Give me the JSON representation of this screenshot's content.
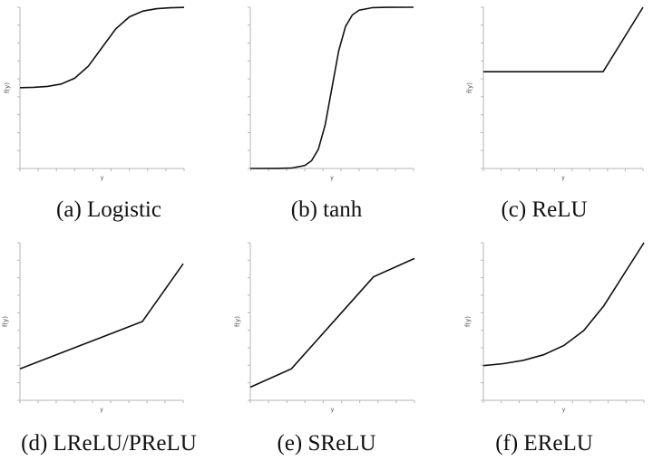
{
  "chart_data": [
    {
      "type": "line",
      "caption": "(a) Logistic",
      "xlabel": "y",
      "ylabel": "f(y)",
      "xlim": [
        -6,
        6
      ],
      "ylim": [
        -1,
        1
      ],
      "x": [
        -6,
        -5,
        -4,
        -3,
        -2,
        -1,
        0,
        1,
        2,
        3,
        4,
        5,
        6
      ],
      "series": [
        {
          "values": [
            0.002,
            0.007,
            0.018,
            0.047,
            0.119,
            0.269,
            0.5,
            0.731,
            0.881,
            0.953,
            0.982,
            0.993,
            0.998
          ]
        }
      ]
    },
    {
      "type": "line",
      "caption": "(b) tanh",
      "xlabel": "y",
      "ylabel": "",
      "xlim": [
        -6,
        6
      ],
      "ylim": [
        -1,
        1
      ],
      "x": [
        -6,
        -4,
        -3,
        -2,
        -1.5,
        -1,
        -0.5,
        0,
        0.5,
        1,
        1.5,
        2,
        3,
        4,
        6
      ],
      "series": [
        {
          "values": [
            -1.0,
            -0.999,
            -0.995,
            -0.964,
            -0.905,
            -0.762,
            -0.462,
            0,
            0.462,
            0.762,
            0.905,
            0.964,
            0.995,
            0.999,
            1.0
          ]
        }
      ]
    },
    {
      "type": "line",
      "caption": "(c) ReLU",
      "xlabel": "y",
      "ylabel": "f(y)",
      "xlim": [
        -3,
        1
      ],
      "ylim": [
        -1.5,
        1
      ],
      "x": [
        -3,
        0,
        1
      ],
      "series": [
        {
          "values": [
            0,
            0,
            1
          ]
        }
      ]
    },
    {
      "type": "line",
      "caption": "(d) LReLU/PReLU",
      "xlabel": "y",
      "ylabel": "f(y)",
      "xlim": [
        -3,
        1
      ],
      "ylim": [
        -1.5,
        1.5
      ],
      "x": [
        -3,
        0,
        1
      ],
      "series": [
        {
          "values": [
            -0.9,
            0,
            1.1
          ]
        }
      ]
    },
    {
      "type": "line",
      "caption": "(e) SReLU",
      "xlabel": "y",
      "ylabel": "f(y)",
      "xlim": [
        -3,
        3
      ],
      "ylim": [
        -3,
        3
      ],
      "x": [
        -3,
        -1.5,
        1.5,
        3
      ],
      "series": [
        {
          "values": [
            -2.5,
            -1.8,
            1.7,
            2.4
          ]
        }
      ]
    },
    {
      "type": "line",
      "caption": "(f) EReLU",
      "xlabel": "y",
      "ylabel": "f(y)",
      "xlim": [
        -3,
        1
      ],
      "ylim": [
        -1.5,
        1
      ],
      "x": [
        -3,
        -2.5,
        -2,
        -1.5,
        -1,
        -0.5,
        0,
        1
      ],
      "series": [
        {
          "values": [
            -0.95,
            -0.918,
            -0.865,
            -0.777,
            -0.632,
            -0.393,
            0,
            1.0
          ]
        }
      ]
    }
  ]
}
